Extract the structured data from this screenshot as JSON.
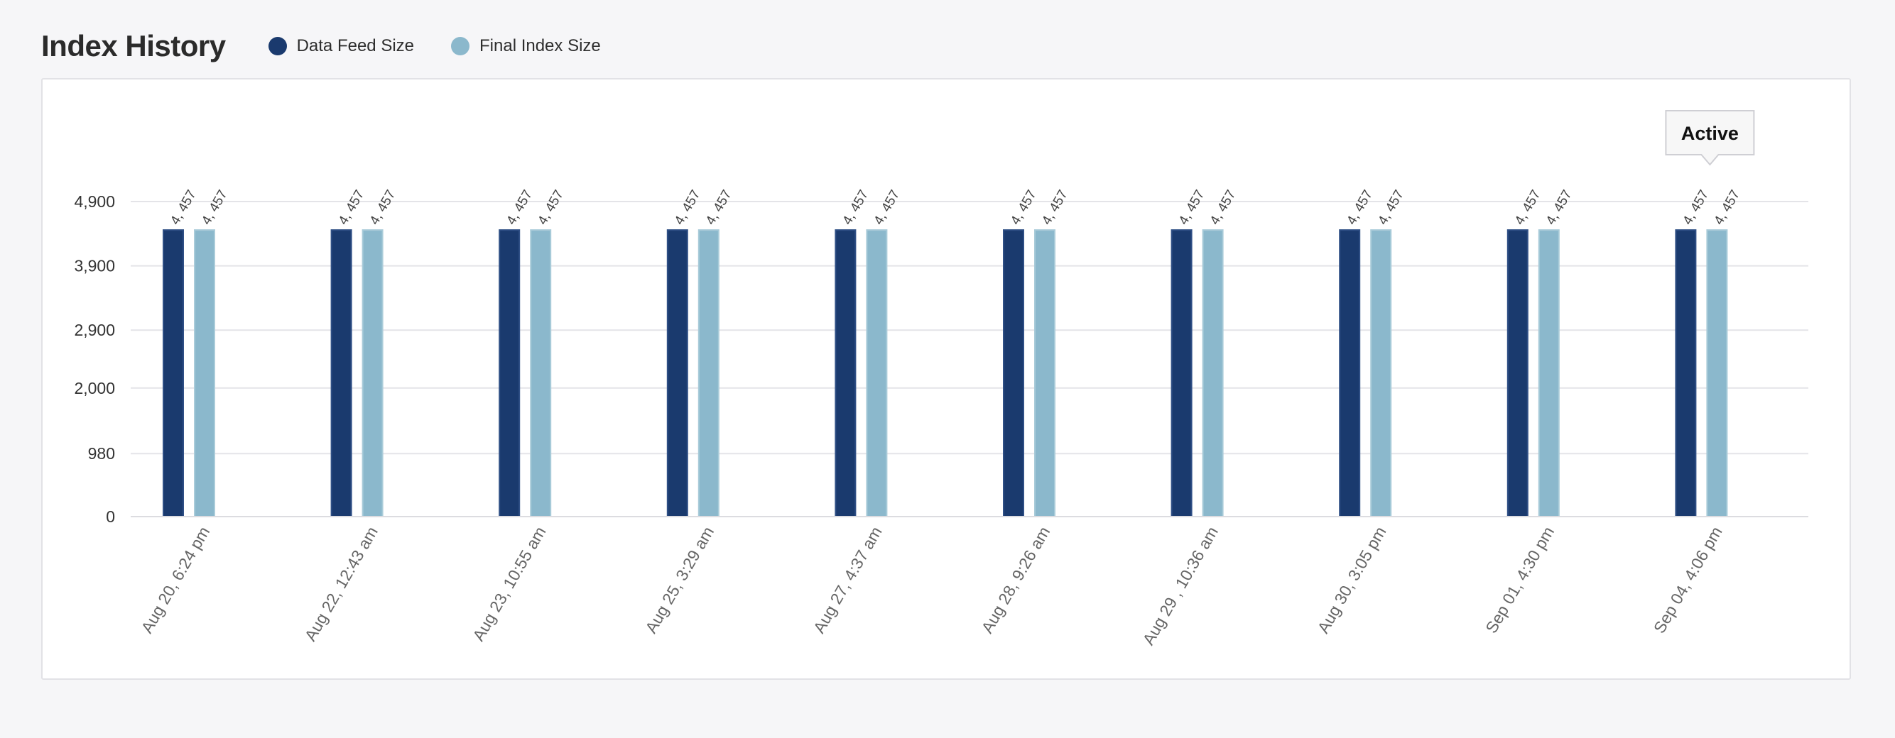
{
  "header": {
    "title": "Index History"
  },
  "legend": [
    {
      "label": "Data Feed Size",
      "color": "#1a3a6e"
    },
    {
      "label": "Final Index Size",
      "color": "#8bb8cc"
    }
  ],
  "tooltip": {
    "label": "Active"
  },
  "chart_data": {
    "type": "bar",
    "categories": [
      "Aug 20, 6:24 pm",
      "Aug 22, 12:43 am",
      "Aug 23, 10:55 am",
      "Aug 25, 3:29 am",
      "Aug 27, 4:37 am",
      "Aug 28, 9:26 am",
      "Aug 29 , 10:36 am",
      "Aug 30, 3:05 pm",
      "Sep 01, 4:30 pm",
      "Sep 04, 4:06 pm"
    ],
    "series": [
      {
        "name": "Data Feed Size",
        "values": [
          4457,
          4457,
          4457,
          4457,
          4457,
          4457,
          4457,
          4457,
          4457,
          4457
        ]
      },
      {
        "name": "Final Index Size",
        "values": [
          4457,
          4457,
          4457,
          4457,
          4457,
          4457,
          4457,
          4457,
          4457,
          4457
        ]
      }
    ],
    "data_labels": [
      "4, 457",
      "4, 457"
    ],
    "ytick_values": [
      0,
      980,
      2000,
      2900,
      3900,
      4900
    ],
    "yticks": [
      "0",
      "980",
      "2,000",
      "2,900",
      "3,900",
      "4,900"
    ],
    "ylim": [
      0,
      4900
    ],
    "xlabel": "",
    "ylabel": "",
    "grid": true,
    "legend_position": "top-left",
    "active_category_index": 9
  }
}
